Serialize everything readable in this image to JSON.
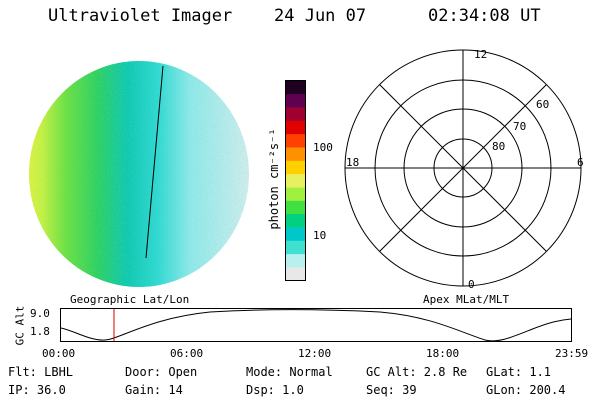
{
  "header": {
    "instrument": "Ultraviolet Imager",
    "date": "24 Jun 07",
    "time": "02:34:08 UT"
  },
  "colorbar": {
    "unit_label": "photon cm⁻²s⁻¹",
    "ticks": [
      {
        "label": "100",
        "value": 100
      },
      {
        "label": "10",
        "value": 10
      }
    ],
    "colors": [
      "#e8e8e8",
      "#b8f0f0",
      "#40e0d0",
      "#00c8c8",
      "#00d080",
      "#40e040",
      "#a0f040",
      "#e8f060",
      "#ffd000",
      "#ff9000",
      "#ff4000",
      "#e00000",
      "#a00030",
      "#600050",
      "#200020"
    ]
  },
  "polar_plot": {
    "mlt_labels": {
      "top": "12",
      "left": "18",
      "right": "6",
      "bottom": "0"
    },
    "lat_labels": [
      "60",
      "70",
      "80"
    ]
  },
  "captions": {
    "left": "Geographic Lat/Lon",
    "right": "Apex MLat/MLT"
  },
  "orbit_chart": {
    "ylabel": "GC Alt",
    "y_ticks": [
      "9.0",
      "1.8"
    ],
    "x_ticks": [
      "00:00",
      "06:00",
      "12:00",
      "18:00",
      "23:59"
    ],
    "current_time_marker": "02:34"
  },
  "info": {
    "flt": "Flt: LBHL",
    "ip": "IP: 36.0",
    "door": "Door: Open",
    "gain": "Gain: 14",
    "mode": "Mode: Normal",
    "dsp": "Dsp:    1.0",
    "gc_alt": "GC Alt: 2.8 Re",
    "seq": "Seq: 39",
    "glat": "GLat:    1.1",
    "glon": "GLon: 200.4"
  }
}
